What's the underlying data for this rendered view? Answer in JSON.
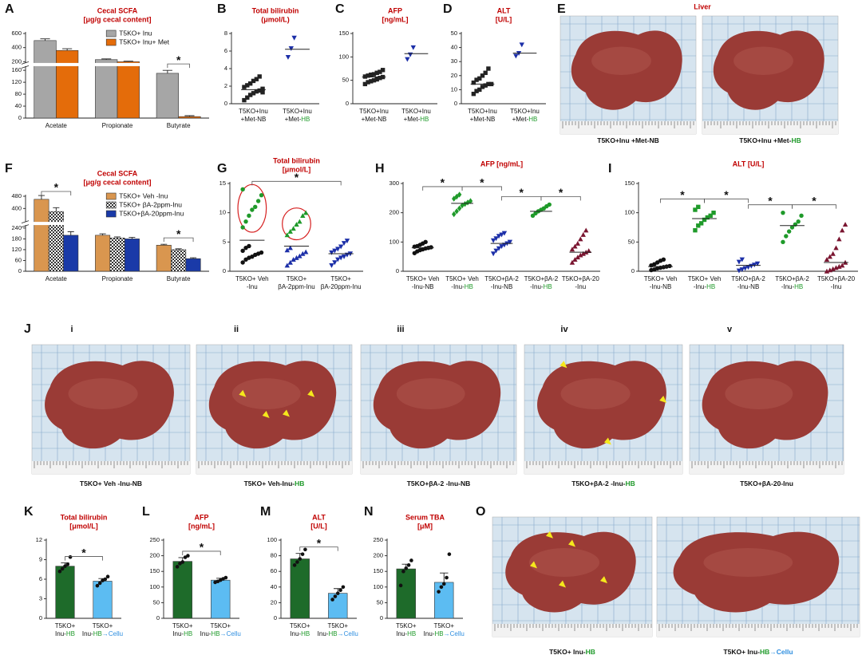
{
  "highlight": {
    "HB": "#1f9a2a",
    "→Cellu": "#2f8fe0"
  },
  "chart_data": [
    {
      "type": "bar",
      "panel": "A",
      "title": "Cecal SCFA",
      "subtitle": "[μg/g cecal content]",
      "categories": [
        "Acetate",
        "Propionate",
        "Butyrate"
      ],
      "series": [
        {
          "name": "T5KO+ Inu",
          "color": "#a6a6a6",
          "values": [
            500,
            230,
            150
          ],
          "errors": [
            25,
            10,
            10
          ]
        },
        {
          "name": "T5KO+ Inu+ Met",
          "color": "#e46c0a",
          "values": [
            360,
            200,
            5
          ],
          "errors": [
            25,
            8,
            3
          ]
        }
      ],
      "ylim": [
        0,
        600
      ],
      "yticks": [
        0,
        40,
        80,
        120,
        160,
        200,
        400,
        600
      ],
      "axis_break": [
        170,
        200
      ],
      "legend": "upper right",
      "significance": [
        {
          "groups": [
            4,
            5
          ],
          "label": "*"
        }
      ]
    },
    {
      "type": "scatter",
      "panel": "B",
      "title": "Total bilirubin",
      "subtitle": "(μmol/L)",
      "categories": [
        [
          "T5KO+Inu",
          "+Met-NB"
        ],
        [
          "T5KO+Inu",
          "+Met-HB"
        ]
      ],
      "groups": [
        {
          "sets": [
            {
              "color": "#222222",
              "marker": "square",
              "values": [
                0.4,
                0.7,
                1.0,
                1.2,
                1.4,
                1.5,
                1.7,
                1.9,
                2.1,
                2.3,
                2.6,
                2.8,
                3.1,
                1.3
              ]
            }
          ],
          "center": 1.6
        },
        {
          "sets": [
            {
              "color": "#1c2fa8",
              "marker": "tri-down",
              "values": [
                5.3,
                6.3,
                7.5
              ]
            }
          ],
          "center": 6.2
        }
      ],
      "ylim": [
        0,
        8
      ],
      "yticks": [
        0,
        2,
        4,
        6,
        8
      ]
    },
    {
      "type": "scatter",
      "panel": "C",
      "title": "AFP",
      "subtitle": "[ng/mL]",
      "categories": [
        [
          "T5KO+Inu",
          "+Met-NB"
        ],
        [
          "T5KO+Inu",
          "+Met-HB"
        ]
      ],
      "groups": [
        {
          "sets": [
            {
              "color": "#222222",
              "marker": "square",
              "values": [
                42,
                46,
                48,
                50,
                52,
                55,
                57,
                58,
                60,
                62,
                63,
                66,
                68,
                72
              ]
            }
          ],
          "center": 57
        },
        {
          "sets": [
            {
              "color": "#1c2fa8",
              "marker": "tri-down",
              "values": [
                95,
                105,
                120
              ]
            }
          ],
          "center": 107
        }
      ],
      "ylim": [
        0,
        150
      ],
      "yticks": [
        0,
        50,
        100,
        150
      ]
    },
    {
      "type": "scatter",
      "panel": "D",
      "title": "ALT",
      "subtitle": "[U/L]",
      "categories": [
        [
          "T5KO+Inu",
          "+Met-NB"
        ],
        [
          "T5KO+Inu",
          "+Met-HB"
        ]
      ],
      "groups": [
        {
          "sets": [
            {
              "color": "#222222",
              "marker": "square",
              "values": [
                7,
                9,
                10,
                12,
                13,
                14,
                14,
                15,
                17,
                18,
                20,
                22,
                25
              ]
            }
          ],
          "center": 14
        },
        {
          "sets": [
            {
              "color": "#1c2fa8",
              "marker": "tri-down",
              "values": [
                34,
                36,
                42
              ]
            }
          ],
          "center": 36
        }
      ],
      "ylim": [
        0,
        50
      ],
      "yticks": [
        0,
        10,
        20,
        30,
        40,
        50
      ]
    },
    {
      "type": "bar",
      "panel": "F",
      "title": "Cecal SCFA",
      "subtitle": "[μg/g cecal content]",
      "categories": [
        "Acetate",
        "Propionate",
        "Butyrate"
      ],
      "series": [
        {
          "name": "T5KO+ Veh -Inu",
          "color": "#d9964f",
          "values": [
            460,
            200,
            145
          ],
          "errors": [
            25,
            8,
            5
          ]
        },
        {
          "name": "T5KO+ βA-2ppm-Inu",
          "color": "#ffffff",
          "pattern": "checker",
          "values": [
            380,
            185,
            120
          ],
          "errors": [
            25,
            6,
            5
          ]
        },
        {
          "name": "T5KO+βA-20ppm-Inu",
          "color": "#1a3aa8",
          "values": [
            200,
            180,
            70
          ],
          "errors": [
            20,
            8,
            5
          ]
        }
      ],
      "ylim": [
        0,
        480
      ],
      "yticks": [
        0,
        60,
        120,
        180,
        240,
        400,
        480
      ],
      "axis_break": [
        250,
        320
      ],
      "legend": "upper right",
      "significance": [
        {
          "groups": [
            0,
            2
          ],
          "label": "*"
        },
        {
          "groups": [
            6,
            8
          ],
          "label": "*"
        }
      ]
    },
    {
      "type": "scatter",
      "panel": "G",
      "title": "Total bilirubin",
      "subtitle": "[μmol/L]",
      "categories": [
        [
          "T5KO+ Veh",
          "-Inu"
        ],
        [
          "T5KO+",
          "βA-2ppm-Inu"
        ],
        [
          "T5KO+",
          "βA-20ppm-Inu"
        ]
      ],
      "groups": [
        {
          "sets": [
            {
              "color": "#1f9a2a",
              "marker": "circle",
              "circled": true,
              "values": [
                7.5,
                8.5,
                9.5,
                10.5,
                11,
                12,
                13,
                14
              ]
            },
            {
              "color": "#111111",
              "marker": "circle",
              "values": [
                1.5,
                2,
                2.3,
                2.5,
                2.8,
                3,
                3.2,
                3.5,
                4,
                4.3
              ]
            }
          ],
          "center": 5.3
        },
        {
          "sets": [
            {
              "color": "#1f9a2a",
              "marker": "tri-up",
              "circled": true,
              "values": [
                6.2,
                6.8,
                7.3,
                8,
                8.5,
                9.5,
                10
              ]
            },
            {
              "color": "#1c2fa8",
              "marker": "tri-up",
              "values": [
                1,
                1.5,
                2,
                2.3,
                2.6,
                3,
                3.3,
                3.6,
                4
              ]
            }
          ],
          "center": 4.3
        },
        {
          "sets": [
            {
              "color": "#1c2fa8",
              "marker": "tri-down",
              "values": [
                1,
                1.5,
                2,
                2.3,
                2.5,
                2.8,
                3,
                3.2,
                3.5,
                3.8,
                4.2,
                4.8,
                5.2
              ]
            }
          ],
          "center": 3
        }
      ],
      "ylim": [
        0,
        15
      ],
      "yticks": [
        0,
        5,
        10,
        15
      ],
      "significance": [
        {
          "groups": [
            0,
            2
          ],
          "label": "*"
        }
      ]
    },
    {
      "type": "scatter",
      "panel": "H",
      "title": "AFP [ng/mL]",
      "categories": [
        [
          "T5KO+ Veh",
          "-Inu-NB"
        ],
        [
          "T5KO+ Veh",
          "-Inu-HB"
        ],
        [
          "T5KO+βA-2",
          "-Inu-NB"
        ],
        [
          "T5KO+βA-2",
          "-Inu-HB"
        ],
        [
          "T5KO+βA-20",
          "-Inu"
        ]
      ],
      "groups": [
        {
          "sets": [
            {
              "color": "#111111",
              "marker": "circle",
              "values": [
                62,
                68,
                72,
                75,
                78,
                80,
                82,
                84,
                86,
                90,
                95,
                100
              ]
            }
          ],
          "center": 80
        },
        {
          "sets": [
            {
              "color": "#1f9a2a",
              "marker": "diamond",
              "values": [
                195,
                205,
                215,
                225,
                230,
                235,
                240,
                248,
                255,
                262
              ]
            }
          ],
          "center": 232
        },
        {
          "sets": [
            {
              "color": "#1c2fa8",
              "marker": "tri-down",
              "values": [
                60,
                70,
                78,
                85,
                90,
                95,
                100,
                105,
                112,
                120,
                125,
                130
              ]
            }
          ],
          "center": 95
        },
        {
          "sets": [
            {
              "color": "#1f9a2a",
              "marker": "circle",
              "values": [
                190,
                198,
                205,
                210,
                215,
                222,
                228
              ]
            }
          ],
          "center": 205
        },
        {
          "sets": [
            {
              "color": "#7a1530",
              "marker": "tri-up",
              "values": [
                30,
                40,
                48,
                55,
                60,
                65,
                70,
                75,
                85,
                95,
                110,
                125,
                140
              ]
            }
          ],
          "center": 65
        }
      ],
      "ylim": [
        0,
        300
      ],
      "yticks": [
        0,
        100,
        200,
        300
      ],
      "significance": [
        {
          "groups": [
            0,
            1
          ],
          "label": "*"
        },
        {
          "groups": [
            1,
            2
          ],
          "label": "*"
        },
        {
          "groups": [
            2,
            3
          ],
          "label": "*"
        },
        {
          "groups": [
            3,
            4
          ],
          "label": "*"
        }
      ]
    },
    {
      "type": "scatter",
      "panel": "I",
      "title": "ALT [U/L]",
      "categories": [
        [
          "T5KO+ Veh",
          "-Inu-NB"
        ],
        [
          "T5KO+ Veh",
          "-Inu-HB"
        ],
        [
          "T5KO+βA-2",
          "-Inu-NB"
        ],
        [
          "T5KO+βA-2",
          "-Inu-HB"
        ],
        [
          "T5KO+βA-20",
          "-Inu"
        ]
      ],
      "groups": [
        {
          "sets": [
            {
              "color": "#111111",
              "marker": "circle",
              "values": [
                2,
                3,
                5,
                6,
                7,
                8,
                9,
                10,
                12,
                15,
                18,
                20
              ]
            }
          ],
          "center": 8
        },
        {
          "sets": [
            {
              "color": "#1f9a2a",
              "marker": "square",
              "values": [
                70,
                78,
                82,
                88,
                92,
                95,
                100,
                105,
                110
              ]
            }
          ],
          "center": 90
        },
        {
          "sets": [
            {
              "color": "#1c2fa8",
              "marker": "tri-down",
              "values": [
                1,
                3,
                5,
                7,
                9,
                11,
                13,
                16,
                20
              ]
            }
          ],
          "center": 10
        },
        {
          "sets": [
            {
              "color": "#1f9a2a",
              "marker": "circle",
              "values": [
                50,
                60,
                68,
                75,
                80,
                85,
                95,
                100
              ]
            }
          ],
          "center": 78
        },
        {
          "sets": [
            {
              "color": "#7a1530",
              "marker": "tri-up",
              "values": [
                0,
                2,
                4,
                6,
                8,
                10,
                15,
                20,
                25,
                30,
                40,
                55,
                70,
                80
              ]
            }
          ],
          "center": 15
        }
      ],
      "ylim": [
        0,
        150
      ],
      "yticks": [
        0,
        50,
        100,
        150
      ],
      "significance": [
        {
          "groups": [
            0,
            1
          ],
          "label": "*"
        },
        {
          "groups": [
            1,
            2
          ],
          "label": "*"
        },
        {
          "groups": [
            2,
            3
          ],
          "label": "*"
        },
        {
          "groups": [
            3,
            4
          ],
          "label": "*"
        }
      ]
    },
    {
      "type": "bar",
      "panel": "K",
      "title": "Total bilirubin",
      "subtitle": "[μmol/L]",
      "categories": [
        [
          "T5KO+",
          "Inu-HB"
        ],
        [
          "T5KO+",
          "Inu-HB→Cellu"
        ]
      ],
      "colors": [
        "#1e6b2a",
        "#5cbcf2"
      ],
      "values": [
        8,
        5.7
      ],
      "errors": [
        0.5,
        0.4
      ],
      "points": [
        [
          7.2,
          7.6,
          8,
          8.3,
          9.4
        ],
        [
          5,
          5.4,
          5.8,
          6,
          6.4
        ]
      ],
      "ylim": [
        0,
        12
      ],
      "yticks": [
        0,
        3,
        6,
        9,
        12
      ],
      "significance": [
        {
          "groups": [
            0,
            1
          ],
          "label": "*"
        }
      ]
    },
    {
      "type": "bar",
      "panel": "L",
      "title": "AFP",
      "subtitle": "[ng/mL]",
      "categories": [
        [
          "T5KO+",
          "Inu-HB"
        ],
        [
          "T5KO+",
          "Inu-HB→Cellu"
        ]
      ],
      "colors": [
        "#1e6b2a",
        "#5cbcf2"
      ],
      "values": [
        182,
        122
      ],
      "errors": [
        12,
        6
      ],
      "points": [
        [
          165,
          175,
          180,
          195,
          200
        ],
        [
          115,
          118,
          122,
          126,
          130
        ]
      ],
      "ylim": [
        0,
        250
      ],
      "yticks": [
        0,
        50,
        100,
        150,
        200,
        250
      ],
      "significance": [
        {
          "groups": [
            0,
            1
          ],
          "label": "*"
        }
      ]
    },
    {
      "type": "bar",
      "panel": "M",
      "title": "ALT",
      "subtitle": "[U/L]",
      "categories": [
        [
          "T5KO+",
          "Inu-HB"
        ],
        [
          "T5KO+",
          "Inu-HB→Cellu"
        ]
      ],
      "colors": [
        "#1e6b2a",
        "#5cbcf2"
      ],
      "values": [
        76,
        32
      ],
      "errors": [
        7,
        6
      ],
      "points": [
        [
          68,
          72,
          76,
          82,
          88
        ],
        [
          24,
          28,
          32,
          36,
          40
        ]
      ],
      "ylim": [
        0,
        100
      ],
      "yticks": [
        0,
        20,
        40,
        60,
        80,
        100
      ],
      "significance": [
        {
          "groups": [
            0,
            1
          ],
          "label": "*"
        }
      ]
    },
    {
      "type": "bar",
      "panel": "N",
      "title": "Serum TBA",
      "subtitle": "[μM]",
      "categories": [
        [
          "T5KO+",
          "Inu-HB"
        ],
        [
          "T5KO+",
          "Inu-HB→Cellu"
        ]
      ],
      "colors": [
        "#1e6b2a",
        "#5cbcf2"
      ],
      "values": [
        158,
        115
      ],
      "errors": [
        15,
        30
      ],
      "points": [
        [
          105,
          150,
          160,
          170,
          185
        ],
        [
          85,
          100,
          110,
          130,
          205
        ]
      ],
      "ylim": [
        0,
        250
      ],
      "yticks": [
        0,
        50,
        100,
        150,
        200,
        250
      ]
    }
  ],
  "photos": [
    {
      "panel": "E",
      "title": "Liver",
      "captions": [
        "T5KO+Inu +Met-NB",
        "T5KO+Inu +Met-HB"
      ]
    },
    {
      "panel": "J",
      "labels": [
        "i",
        "ii",
        "iii",
        "iv",
        "v"
      ],
      "captions": [
        "T5KO+ Veh -Inu-NB",
        "T5KO+ Veh-Inu-HB",
        "T5KO+βA-2 -Inu-NB",
        "T5KO+βA-2 -Inu-HB",
        "T5KO+βA-20-Inu"
      ]
    },
    {
      "panel": "O",
      "captions": [
        "T5KO+ Inu-HB",
        "T5KO+ Inu-HB→Cellu"
      ]
    }
  ]
}
